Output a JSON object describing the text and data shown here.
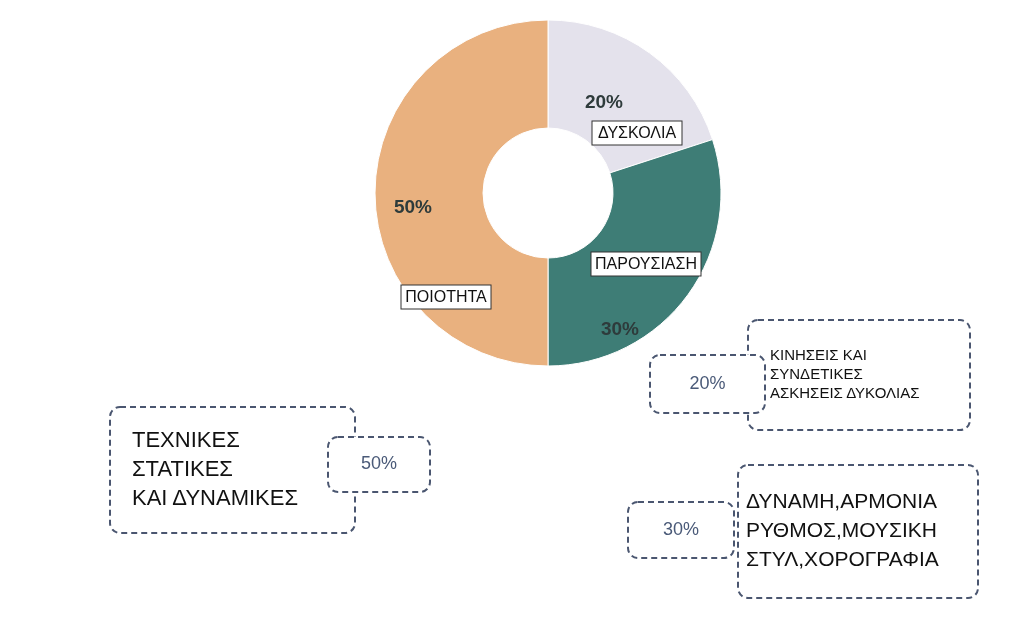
{
  "chart_data": {
    "type": "donut",
    "categories": [
      "ΔΥΣΚΟΛΙΑ",
      "ΠΑΡΟΥΣΙΑΣΗ",
      "ΠΟΙΟΤΗΤΑ"
    ],
    "values": [
      20,
      30,
      50
    ],
    "colors": [
      "#e4e2ec",
      "#3e7d76",
      "#e9b17f"
    ],
    "value_labels": [
      "20%",
      "30%",
      "50%"
    ],
    "annotations": [
      "ΚΙΝΗΣΕΙΣ ΚΑΙ\nΣΥΝΔΕΤΙΚΕΣ\nΑΣΚΗΣΕΙΣ ΔΥΚΟΛΙΑΣ",
      "20%",
      "ΔΥΝΑΜΗ,ΑΡΜΟΝΙΑ\nΡΥΘΜΟΣ,ΜΟΥΣΙΚΗ\nΣΤΥΛ,ΧΟΡΟΓΡΑΦΙΑ",
      "30%",
      "ΤΕΧΝΙΚΕΣ\nΣΤΑΤΙΚΕΣ\nΚΑΙ ΔΥΝΑΜΙΚΕΣ",
      "50%"
    ]
  }
}
